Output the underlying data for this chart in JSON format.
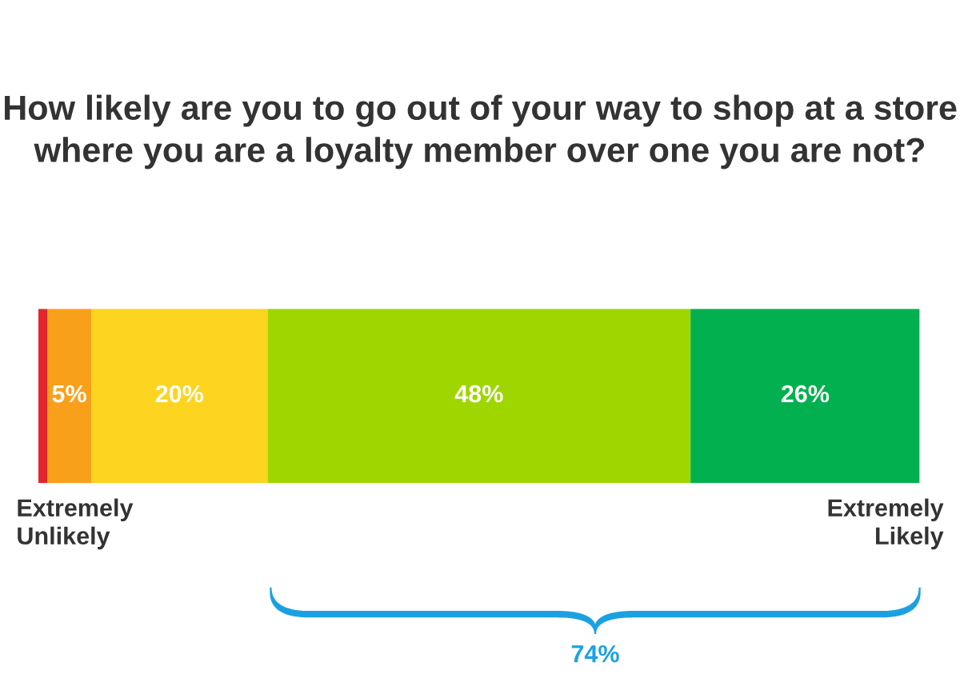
{
  "chart_data": {
    "type": "bar",
    "orientation": "horizontal",
    "stacked": true,
    "title": "How likely are you to go out of your way to shop at a store where you are a loyalty member over one you are not?",
    "categories": [
      null
    ],
    "xlim": [
      0,
      100
    ],
    "series": [
      {
        "color": "#e3262b",
        "values": [
          1
        ],
        "value_labels": [
          null
        ]
      },
      {
        "color": "#f9a01b",
        "values": [
          5
        ],
        "value_labels": [
          "5%"
        ]
      },
      {
        "color": "#fdd41f",
        "values": [
          20
        ],
        "value_labels": [
          "20%"
        ]
      },
      {
        "color": "#9fd600",
        "values": [
          48
        ],
        "value_labels": [
          "48%"
        ]
      },
      {
        "color": "#03b04f",
        "values": [
          26
        ],
        "value_labels": [
          "26%"
        ]
      }
    ],
    "annotations": [
      "Extremely\nUnlikely",
      "Extremely\nLikely",
      "74%"
    ]
  }
}
